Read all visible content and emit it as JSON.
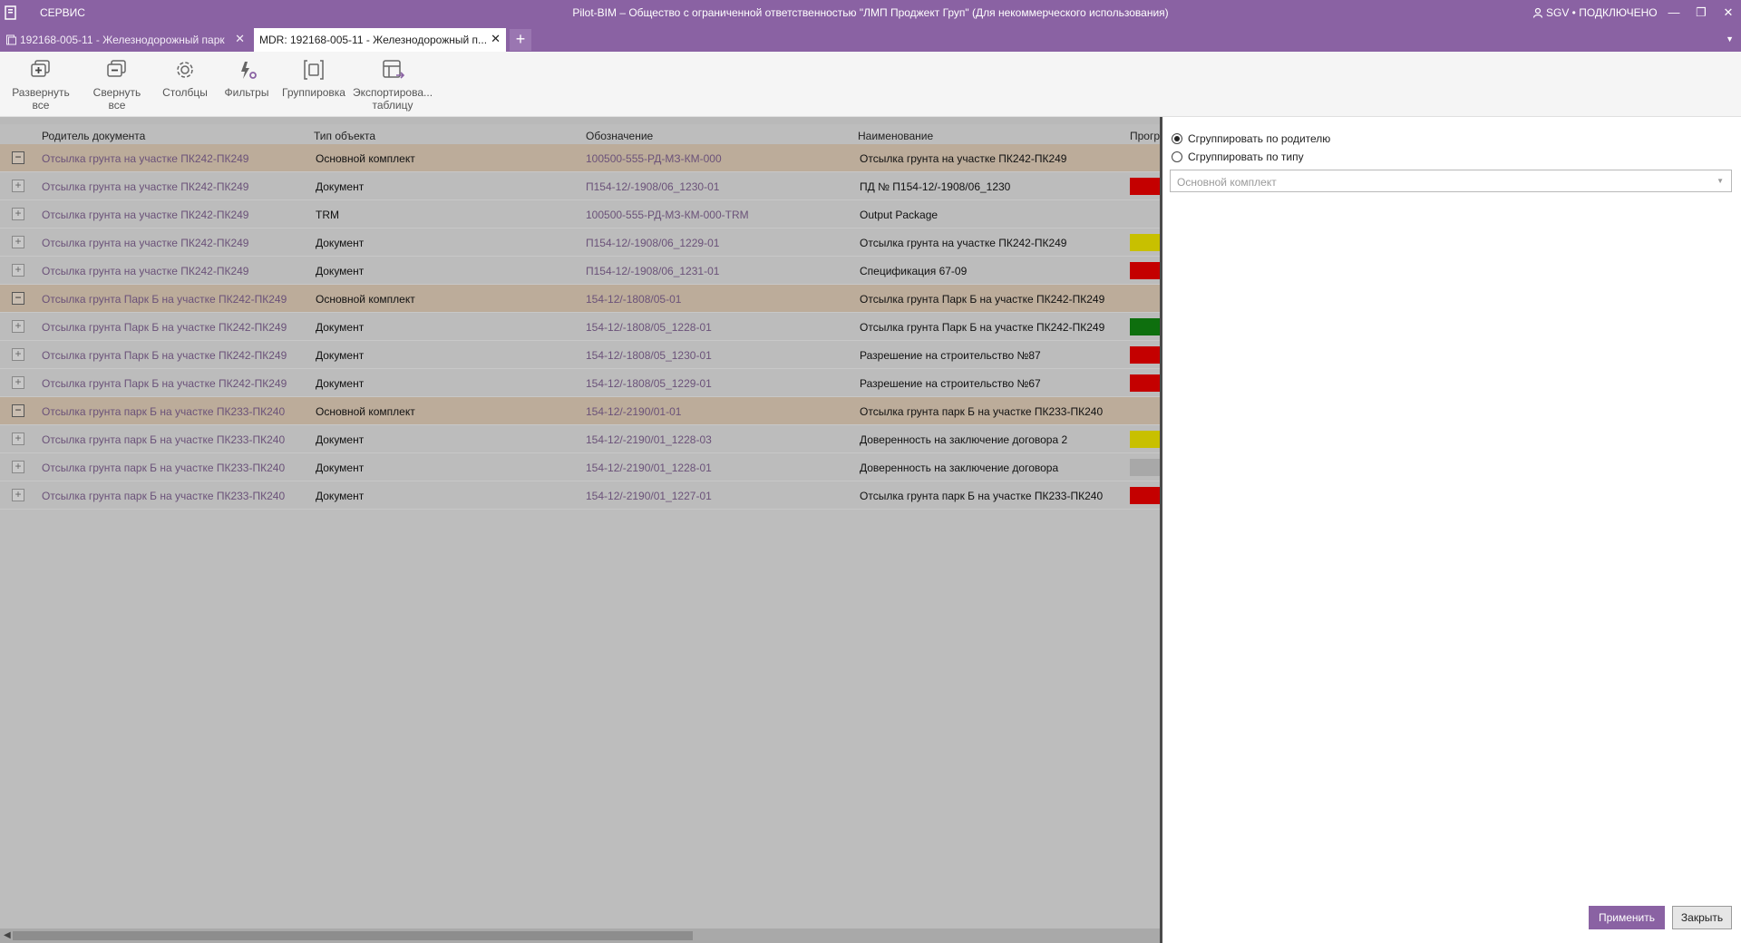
{
  "titlebar": {
    "menu_service": "СЕРВИС",
    "title": "Pilot-BIM – Общество с ограниченной ответственностью \"ЛМП Проджект Груп\" (Для некоммерческого использования)",
    "user_status": "SGV • ПОДКЛЮЧЕНО",
    "minimize": "—",
    "restore": "❐",
    "close": "✕"
  },
  "tabs": {
    "items": [
      {
        "label": "192168-005-11 - Железнодорожный парк"
      },
      {
        "label": "MDR: 192168-005-11 - Железнодорожный п..."
      }
    ],
    "add": "+",
    "dropdown": "▼"
  },
  "toolbar": {
    "expand_all": "Развернуть все",
    "collapse_all": "Свернуть все",
    "columns": "Столбцы",
    "filters": "Фильтры",
    "grouping": "Группировка",
    "export_line1": "Экспортирова...",
    "export_line2": "таблицу"
  },
  "grid": {
    "headers": {
      "parent": "Родитель документа",
      "type": "Тип объекта",
      "code": "Обозначение",
      "name": "Наименование",
      "progress": "Прогр"
    },
    "rows": [
      {
        "group": true,
        "toggle": "−",
        "parent": "Отсылка грунта на участке ПК242-ПК249",
        "type": "Основной комплект",
        "code": "100500-555-РД-МЗ-КМ-000",
        "name": "Отсылка грунта на участке ПК242-ПК249",
        "status": ""
      },
      {
        "group": false,
        "toggle": "+",
        "parent": "Отсылка грунта на участке ПК242-ПК249",
        "type": "Документ",
        "code": "П154-12/-1908/06_1230-01",
        "name": "ПД № П154-12/-1908/06_1230",
        "status": "red"
      },
      {
        "group": false,
        "toggle": "+",
        "parent": "Отсылка грунта на участке ПК242-ПК249",
        "type": "TRM",
        "code": "100500-555-РД-МЗ-КМ-000-TRM",
        "name": "Output Package",
        "status": ""
      },
      {
        "group": false,
        "toggle": "+",
        "parent": "Отсылка грунта на участке ПК242-ПК249",
        "type": "Документ",
        "code": "П154-12/-1908/06_1229-01",
        "name": "Отсылка грунта на участке ПК242-ПК249",
        "status": "yellow"
      },
      {
        "group": false,
        "toggle": "+",
        "parent": "Отсылка грунта на участке ПК242-ПК249",
        "type": "Документ",
        "code": "П154-12/-1908/06_1231-01",
        "name": "Спецификация 67-09",
        "status": "red"
      },
      {
        "group": true,
        "toggle": "−",
        "parent": "Отсылка грунта Парк Б на участке ПК242-ПК249",
        "type": "Основной комплект",
        "code": "154-12/-1808/05-01",
        "name": "Отсылка грунта Парк Б на участке ПК242-ПК249",
        "status": ""
      },
      {
        "group": false,
        "toggle": "+",
        "parent": "Отсылка грунта Парк Б на участке ПК242-ПК249",
        "type": "Документ",
        "code": "154-12/-1808/05_1228-01",
        "name": "Отсылка грунта Парк Б на участке ПК242-ПК249",
        "status": "green"
      },
      {
        "group": false,
        "toggle": "+",
        "parent": "Отсылка грунта Парк Б на участке ПК242-ПК249",
        "type": "Документ",
        "code": "154-12/-1808/05_1230-01",
        "name": "Разрешение на строительство №87",
        "status": "red"
      },
      {
        "group": false,
        "toggle": "+",
        "parent": "Отсылка грунта Парк Б на участке ПК242-ПК249",
        "type": "Документ",
        "code": "154-12/-1808/05_1229-01",
        "name": "Разрешение на строительство №67",
        "status": "red"
      },
      {
        "group": true,
        "toggle": "−",
        "parent": "Отсылка грунта парк Б на участке ПК233-ПК240",
        "type": "Основной комплект",
        "code": "154-12/-2190/01-01",
        "name": "Отсылка грунта парк Б на участке ПК233-ПК240",
        "status": ""
      },
      {
        "group": false,
        "toggle": "+",
        "parent": "Отсылка грунта парк Б на участке ПК233-ПК240",
        "type": "Документ",
        "code": "154-12/-2190/01_1228-03",
        "name": "Доверенность на заключение договора 2",
        "status": "yellow"
      },
      {
        "group": false,
        "toggle": "+",
        "parent": "Отсылка грунта парк Б на участке ПК233-ПК240",
        "type": "Документ",
        "code": "154-12/-2190/01_1228-01",
        "name": "Доверенность на заключение договора",
        "status": "gray"
      },
      {
        "group": false,
        "toggle": "+",
        "parent": "Отсылка грунта парк Б на участке ПК233-ПК240",
        "type": "Документ",
        "code": "154-12/-2190/01_1227-01",
        "name": "Отсылка грунта парк Б на участке ПК233-ПК240",
        "status": "red"
      }
    ],
    "status_colors": {
      "red": "#c40000",
      "yellow": "#c8c000",
      "green": "#0e6f0e",
      "gray": "#a8a8a8",
      "": "transparent"
    }
  },
  "panel": {
    "group_by_parent": "Сгруппировать по родителю",
    "group_by_type": "Сгруппировать по типу",
    "selected": "parent",
    "combo_placeholder": "Основной комплект",
    "apply": "Применить",
    "close": "Закрыть"
  },
  "scrollbar": {
    "left_arrow": "◀"
  }
}
